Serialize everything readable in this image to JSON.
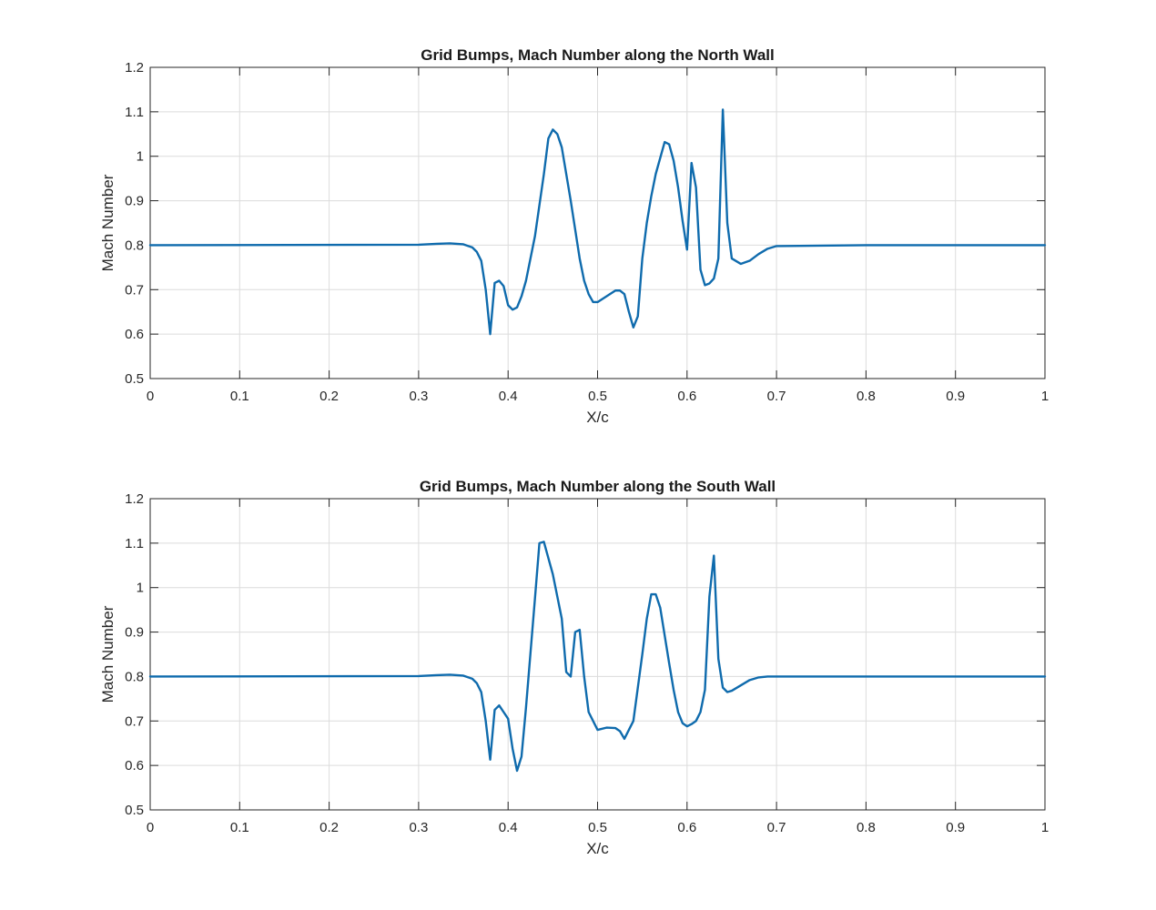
{
  "series_color": "#0f6bad",
  "chart_data": [
    {
      "type": "line",
      "title": "Grid Bumps, Mach Number along the North Wall",
      "xlabel": "X/c",
      "ylabel": "Mach Number",
      "xlim": [
        0,
        1
      ],
      "ylim": [
        0.5,
        1.2
      ],
      "xticks": [
        "0",
        "0.1",
        "0.2",
        "0.3",
        "0.4",
        "0.5",
        "0.6",
        "0.7",
        "0.8",
        "0.9",
        "1"
      ],
      "yticks": [
        "0.5",
        "0.6",
        "0.7",
        "0.8",
        "0.9",
        "1",
        "1.1",
        "1.2"
      ],
      "grid": true,
      "series": [
        {
          "x": [
            0,
            0.3,
            0.32,
            0.335,
            0.35,
            0.36,
            0.365,
            0.37,
            0.375,
            0.38,
            0.385,
            0.39,
            0.395,
            0.4,
            0.405,
            0.41,
            0.415,
            0.42,
            0.43,
            0.44,
            0.445,
            0.45,
            0.455,
            0.46,
            0.47,
            0.48,
            0.485,
            0.49,
            0.495,
            0.5,
            0.51,
            0.52,
            0.525,
            0.53,
            0.535,
            0.54,
            0.545,
            0.55,
            0.555,
            0.56,
            0.565,
            0.575,
            0.58,
            0.585,
            0.59,
            0.595,
            0.6,
            0.605,
            0.61,
            0.615,
            0.62,
            0.625,
            0.63,
            0.635,
            0.64,
            0.645,
            0.65,
            0.66,
            0.67,
            0.68,
            0.69,
            0.7,
            0.8,
            1
          ],
          "y": [
            0.8,
            0.801,
            0.803,
            0.804,
            0.802,
            0.795,
            0.785,
            0.765,
            0.7,
            0.6,
            0.715,
            0.72,
            0.708,
            0.665,
            0.655,
            0.66,
            0.685,
            0.72,
            0.82,
            0.96,
            1.04,
            1.06,
            1.05,
            1.02,
            0.9,
            0.77,
            0.72,
            0.69,
            0.672,
            0.672,
            0.685,
            0.698,
            0.698,
            0.69,
            0.65,
            0.615,
            0.64,
            0.77,
            0.85,
            0.91,
            0.96,
            1.032,
            1.027,
            0.99,
            0.93,
            0.855,
            0.79,
            0.985,
            0.93,
            0.745,
            0.71,
            0.714,
            0.725,
            0.77,
            1.105,
            0.85,
            0.77,
            0.758,
            0.765,
            0.78,
            0.792,
            0.798,
            0.8,
            0.8
          ]
        }
      ]
    },
    {
      "type": "line",
      "title": "Grid Bumps, Mach Number along the South Wall",
      "xlabel": "X/c",
      "ylabel": "Mach Number",
      "xlim": [
        0,
        1
      ],
      "ylim": [
        0.5,
        1.2
      ],
      "xticks": [
        "0",
        "0.1",
        "0.2",
        "0.3",
        "0.4",
        "0.5",
        "0.6",
        "0.7",
        "0.8",
        "0.9",
        "1"
      ],
      "yticks": [
        "0.5",
        "0.6",
        "0.7",
        "0.8",
        "0.9",
        "1",
        "1.1",
        "1.2"
      ],
      "grid": true,
      "series": [
        {
          "x": [
            0,
            0.3,
            0.32,
            0.335,
            0.35,
            0.36,
            0.365,
            0.37,
            0.375,
            0.38,
            0.385,
            0.39,
            0.395,
            0.4,
            0.405,
            0.41,
            0.415,
            0.42,
            0.43,
            0.435,
            0.44,
            0.45,
            0.46,
            0.465,
            0.47,
            0.475,
            0.48,
            0.485,
            0.49,
            0.5,
            0.51,
            0.52,
            0.525,
            0.53,
            0.54,
            0.55,
            0.555,
            0.56,
            0.565,
            0.57,
            0.58,
            0.585,
            0.59,
            0.595,
            0.6,
            0.605,
            0.61,
            0.615,
            0.62,
            0.625,
            0.63,
            0.635,
            0.64,
            0.645,
            0.65,
            0.66,
            0.67,
            0.68,
            0.69,
            0.7,
            0.8,
            1
          ],
          "y": [
            0.8,
            0.801,
            0.803,
            0.804,
            0.802,
            0.795,
            0.785,
            0.765,
            0.7,
            0.613,
            0.725,
            0.735,
            0.72,
            0.705,
            0.638,
            0.588,
            0.62,
            0.73,
            0.975,
            1.1,
            1.103,
            1.03,
            0.93,
            0.81,
            0.8,
            0.9,
            0.905,
            0.8,
            0.72,
            0.68,
            0.685,
            0.684,
            0.677,
            0.66,
            0.7,
            0.85,
            0.93,
            0.985,
            0.985,
            0.955,
            0.83,
            0.77,
            0.72,
            0.695,
            0.688,
            0.693,
            0.7,
            0.72,
            0.77,
            0.98,
            1.072,
            0.84,
            0.775,
            0.765,
            0.768,
            0.78,
            0.792,
            0.798,
            0.8,
            0.8,
            0.8,
            0.8
          ]
        }
      ]
    }
  ]
}
